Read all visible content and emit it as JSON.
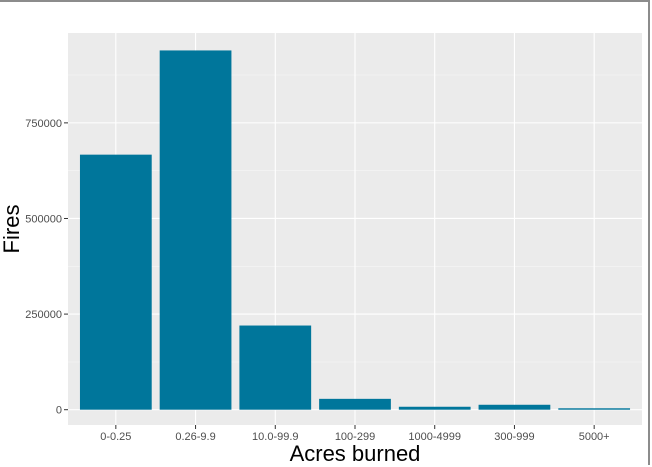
{
  "chart_data": {
    "type": "bar",
    "title": "",
    "xlabel": "Acres burned",
    "ylabel": "Fires",
    "categories": [
      "0-0.25",
      "0.26-9.9",
      "10.0-99.9",
      "100-299",
      "1000-4999",
      "300-999",
      "5000+"
    ],
    "values": [
      666900,
      939400,
      220100,
      28400,
      7700,
      12900,
      3700
    ],
    "ylim": [
      -40000,
      985000
    ],
    "yticks": [
      0,
      250000,
      500000,
      750000
    ],
    "ytick_labels": [
      "0",
      "250000",
      "500000",
      "750000"
    ],
    "grid": true,
    "legend": "none",
    "colors": {
      "bar": "#00769b",
      "panel": "#ebebeb",
      "grid_major": "#ffffff",
      "grid_minor": "#f5f5f5",
      "tick_text": "#4d4d4d",
      "tick_mark": "#333333"
    }
  }
}
